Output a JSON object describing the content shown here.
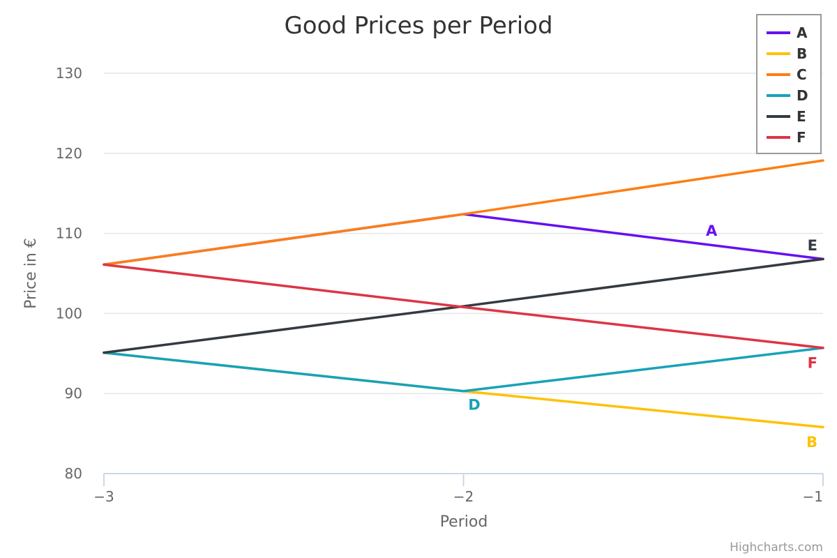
{
  "chart_data": {
    "type": "line",
    "title": "Good Prices per Period",
    "xlabel": "Period",
    "ylabel": "Price in €",
    "x": [
      -3,
      -2,
      -1
    ],
    "x_tick_labels": [
      "−3",
      "−2",
      "−1"
    ],
    "xlim": [
      -3,
      -1
    ],
    "ylim": [
      80,
      130
    ],
    "y_ticks": [
      80,
      90,
      100,
      110,
      120,
      130
    ],
    "grid": true,
    "legend_position": "top-right",
    "series": [
      {
        "name": "A",
        "color": "#6610f2",
        "values": [
          106.1,
          112.4,
          106.8
        ]
      },
      {
        "name": "B",
        "color": "#ffc107",
        "values": [
          95.1,
          90.3,
          85.8
        ]
      },
      {
        "name": "C",
        "color": "#fd7e14",
        "values": [
          106.1,
          112.4,
          119.1
        ]
      },
      {
        "name": "D",
        "color": "#17a2b8",
        "values": [
          95.1,
          90.3,
          95.7
        ]
      },
      {
        "name": "E",
        "color": "#343a40",
        "values": [
          95.1,
          100.9,
          106.8
        ]
      },
      {
        "name": "F",
        "color": "#dc3545",
        "values": [
          106.1,
          100.8,
          95.7
        ]
      }
    ],
    "line_labels": [
      {
        "series": "A",
        "text": "A",
        "x": -1.31,
        "y": 110.3
      },
      {
        "series": "B",
        "text": "B",
        "x": -1.0,
        "y": 83.9
      },
      {
        "series": "C",
        "text": "C",
        "x": -1.0,
        "y": 121.5
      },
      {
        "series": "D",
        "text": "D",
        "x": -1.97,
        "y": 88.6
      },
      {
        "series": "E",
        "text": "E",
        "x": -1.0,
        "y": 108.5
      },
      {
        "series": "F",
        "text": "F",
        "x": -1.0,
        "y": 93.8
      }
    ]
  },
  "credits": "Highcharts.com"
}
